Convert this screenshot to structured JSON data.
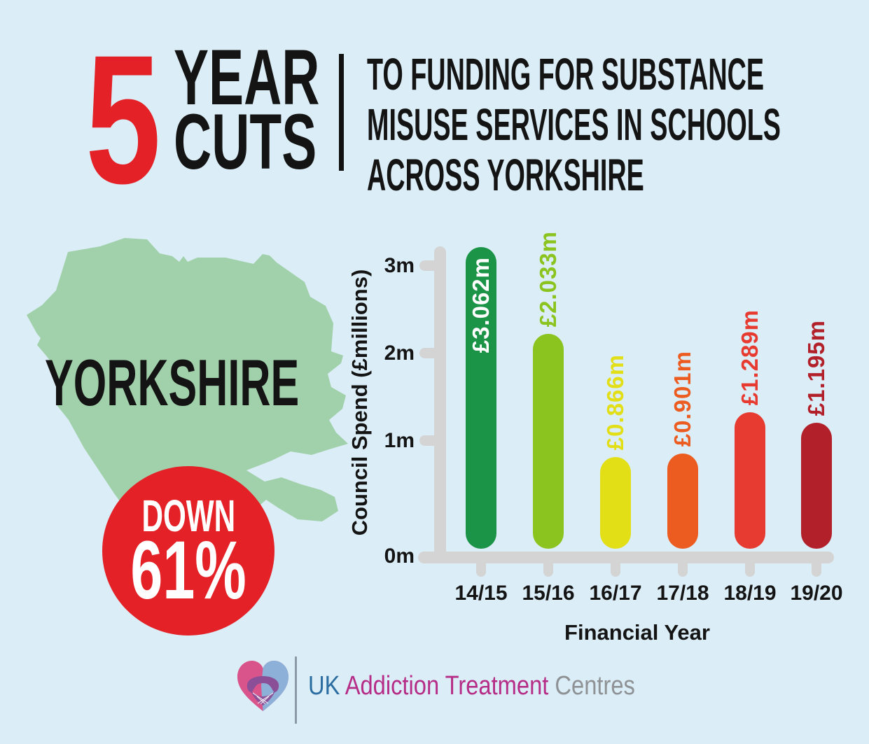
{
  "colors": {
    "background": "#dbedf6",
    "accent_red": "#e32127",
    "ink": "#141414",
    "map_green": "#a1d1ab",
    "axis_gray": "#d4d4d4",
    "brand_blue": "#2b6da0",
    "brand_magenta": "#b62d87",
    "brand_gray": "#8f9295"
  },
  "header": {
    "big_number": "5",
    "word_top": "YEAR",
    "word_bottom": "CUTS",
    "subtitle_lines": [
      "TO FUNDING FOR SUBSTANCE",
      "MISUSE SERVICES IN SCHOOLS",
      "ACROSS YORKSHIRE"
    ]
  },
  "map": {
    "label": "YORKSHIRE"
  },
  "badge": {
    "line1": "DOWN",
    "line2": "61%"
  },
  "chart_data": {
    "type": "bar",
    "categories": [
      "14/15",
      "15/16",
      "16/17",
      "17/18",
      "18/19",
      "19/20"
    ],
    "values": [
      3.062,
      2.033,
      0.866,
      0.901,
      1.289,
      1.195
    ],
    "bar_labels": [
      "£3.062m",
      "£2.033m",
      "£0.866m",
      "£0.901m",
      "£1.289m",
      "£1.195m"
    ],
    "bar_colors": [
      "#1b9447",
      "#8cc41f",
      "#e2df17",
      "#ec5b1f",
      "#e73b31",
      "#b2202a"
    ],
    "value_label_placement": [
      "inside",
      "above",
      "above",
      "above",
      "above",
      "above"
    ],
    "inside_label_color": "#ffffff",
    "title": "",
    "xlabel": "Financial Year",
    "ylabel": "Council Spend (£millions)",
    "y_tick_labels": [
      "0m",
      "1m",
      "2m",
      "3m"
    ],
    "ylim": [
      0,
      3.2
    ],
    "grid": false,
    "legend_position": "none",
    "axis_color": "#d4d4d4"
  },
  "footer": {
    "brand_uk": "UK",
    "brand_mid": "Addiction Treatment",
    "brand_end": "Centres"
  }
}
